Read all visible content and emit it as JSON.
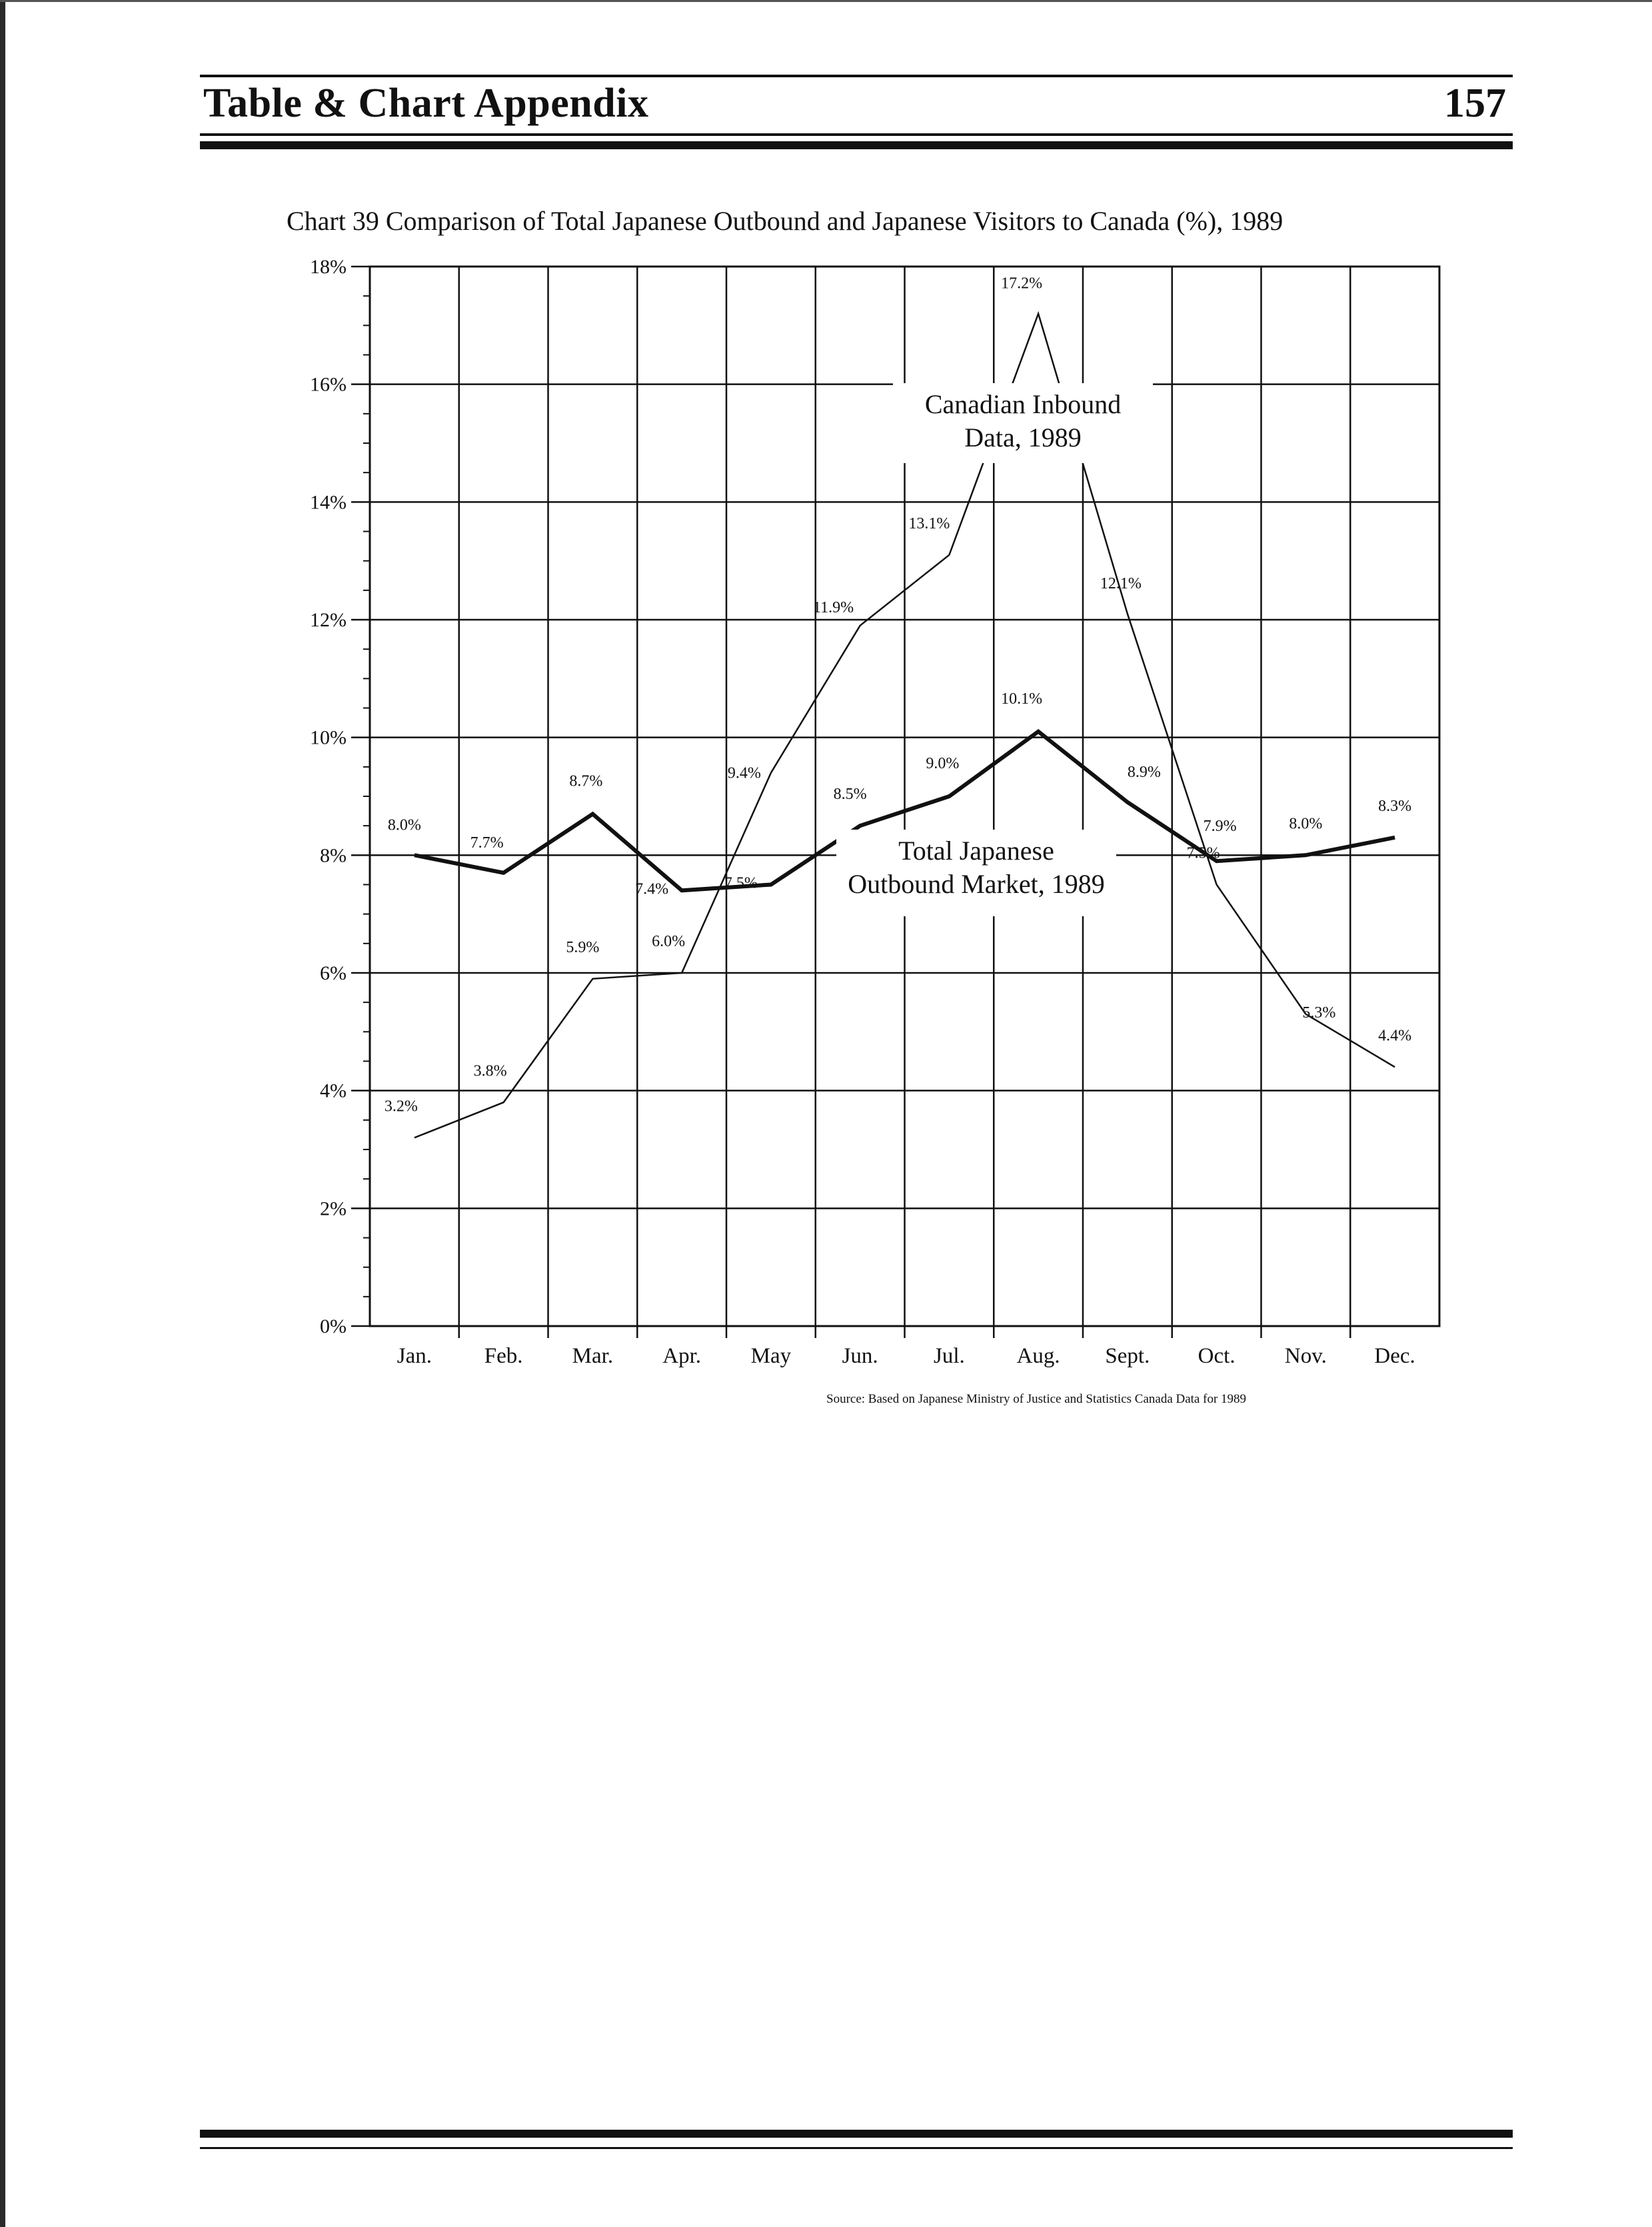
{
  "header": {
    "title": "Table & Chart Appendix",
    "page_number": "157"
  },
  "chart_data": {
    "type": "line",
    "title": "Chart 39 Comparison of Total Japanese Outbound and Japanese Visitors to Canada (%), 1989",
    "categories": [
      "Jan.",
      "Feb.",
      "Mar.",
      "Apr.",
      "May",
      "Jun.",
      "Jul.",
      "Aug.",
      "Sept.",
      "Oct.",
      "Nov.",
      "Dec."
    ],
    "ylim": [
      0,
      18
    ],
    "ytick_labels": [
      "0%",
      "2%",
      "4%",
      "6%",
      "8%",
      "10%",
      "12%",
      "14%",
      "16%",
      "18%"
    ],
    "grid": true,
    "xlabel": "",
    "ylabel": "",
    "series": [
      {
        "name": "Canadian Inbound Data, 1989",
        "name_lines": [
          "Canadian Inbound",
          "Data, 1989"
        ],
        "values": [
          3.2,
          3.8,
          5.9,
          6.0,
          9.4,
          11.9,
          13.1,
          17.2,
          12.1,
          7.5,
          5.3,
          4.4
        ],
        "labels": [
          "3.2%",
          "3.8%",
          "5.9%",
          "6.0%",
          "9.4%",
          "11.9%",
          "13.1%",
          "17.2%",
          "12.1%",
          "7.5%",
          "5.3%",
          "4.4%"
        ],
        "style": "thin"
      },
      {
        "name": "Total Japanese Outbound Market, 1989",
        "name_lines": [
          "Total Japanese",
          "Outbound Market, 1989"
        ],
        "values": [
          8.0,
          7.7,
          8.7,
          7.4,
          7.5,
          8.5,
          9.0,
          10.1,
          8.9,
          7.9,
          8.0,
          8.3
        ],
        "labels": [
          "8.0%",
          "7.7%",
          "8.7%",
          "7.4%",
          "7.5%",
          "8.5%",
          "9.0%",
          "10.1%",
          "8.9%",
          "7.9%",
          "8.0%",
          "8.3%"
        ],
        "style": "bold"
      }
    ],
    "source": "Source: Based on Japanese Ministry of Justice and Statistics Canada Data for 1989"
  }
}
